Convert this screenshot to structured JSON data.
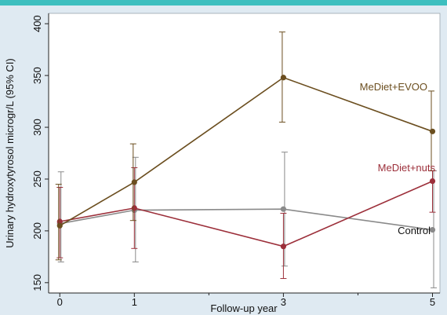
{
  "chart_data": {
    "type": "line",
    "title": "",
    "xlabel": "Follow-up year",
    "ylabel": "Urinary hydroxytyrosol microgr/L (95% CI)",
    "x": [
      0,
      1,
      3,
      5
    ],
    "x_ticks": [
      "0",
      "1",
      "3",
      "5"
    ],
    "xlim": [
      -0.15,
      5.1
    ],
    "y_ticks": [
      150,
      200,
      250,
      300,
      350,
      400
    ],
    "ylim": [
      140,
      410
    ],
    "grid": false,
    "series": [
      {
        "name": "MeDiet+EVOO",
        "color": "#6b4e1f",
        "values": [
          205,
          247,
          348,
          296
        ],
        "ci_low": [
          172,
          210,
          305,
          258
        ],
        "ci_high": [
          245,
          284,
          392,
          335
        ]
      },
      {
        "name": "MeDiet+nuts",
        "color": "#9c2f3a",
        "values": [
          209,
          222,
          185,
          248
        ],
        "ci_low": [
          174,
          183,
          154,
          218
        ],
        "ci_high": [
          242,
          261,
          217,
          258
        ]
      },
      {
        "name": "Control",
        "color": "#8a8a8a",
        "values": [
          207,
          220,
          221,
          201
        ],
        "ci_low": [
          170,
          170,
          166,
          145
        ],
        "ci_high": [
          257,
          271,
          276,
          258
        ]
      }
    ]
  }
}
